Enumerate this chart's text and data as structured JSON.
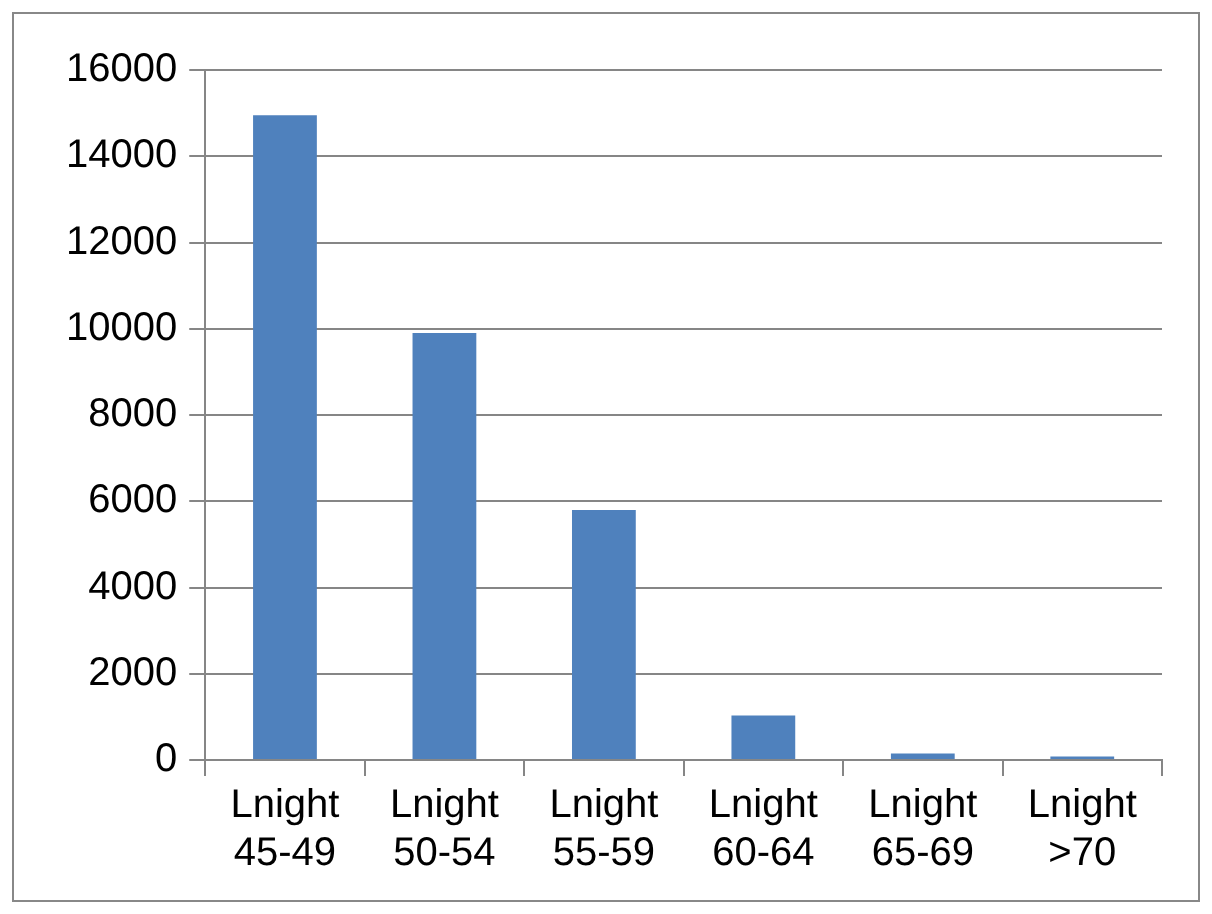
{
  "chart_data": {
    "type": "bar",
    "categories": [
      "Lnight 45-49",
      "Lnight 50-54",
      "Lnight 55-59",
      "Lnight 60-64",
      "Lnight 65-69",
      "Lnight >70"
    ],
    "values": [
      14950,
      9900,
      5800,
      1030,
      150,
      80
    ],
    "color": "#4f81bd",
    "ylim": [
      0,
      16000
    ],
    "yticks": [
      0,
      2000,
      4000,
      6000,
      8000,
      10000,
      12000,
      14000,
      16000
    ],
    "grid": "y",
    "legend": false
  }
}
